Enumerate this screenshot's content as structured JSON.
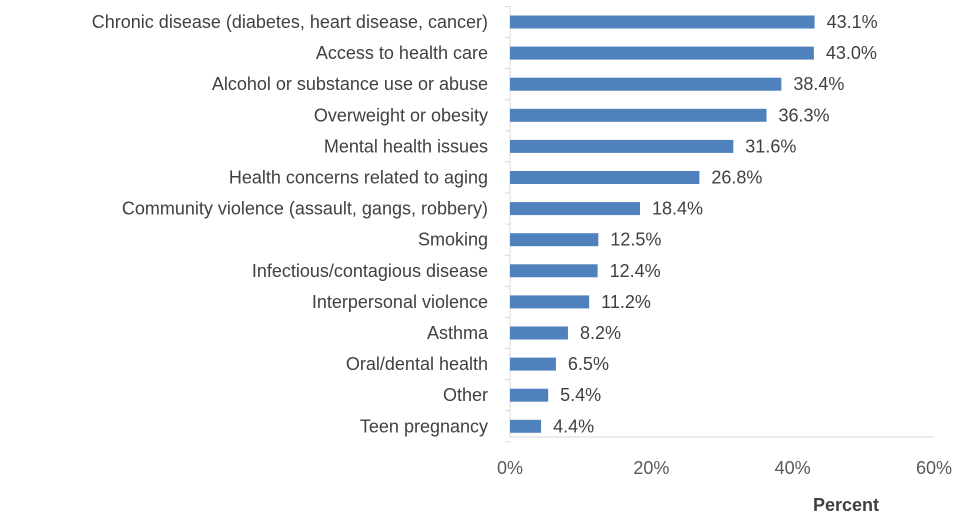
{
  "chart_data": {
    "type": "bar",
    "orientation": "horizontal",
    "title": "",
    "xlabel": "Percent",
    "ylabel": "",
    "xlim": [
      0,
      60
    ],
    "x_ticks": [
      0,
      20,
      40,
      60
    ],
    "x_tick_labels": [
      "0%",
      "20%",
      "40%",
      "60%"
    ],
    "grid": false,
    "legend": "none",
    "bar_color": "#4f81bd",
    "categories": [
      "Chronic disease (diabetes, heart disease, cancer)",
      "Access to health care",
      "Alcohol or substance use or abuse",
      "Overweight or obesity",
      "Mental health issues",
      "Health concerns related to aging",
      "Community violence (assault, gangs, robbery)",
      "Smoking",
      "Infectious/contagious disease",
      "Interpersonal violence",
      "Asthma",
      "Oral/dental health",
      "Other",
      "Teen pregnancy"
    ],
    "values": [
      43.1,
      43.0,
      38.4,
      36.3,
      31.6,
      26.8,
      18.4,
      12.5,
      12.4,
      11.2,
      8.2,
      6.5,
      5.4,
      4.4
    ],
    "data_labels": [
      "43.1%",
      "43.0%",
      "38.4%",
      "36.3%",
      "31.6%",
      "26.8%",
      "18.4%",
      "12.5%",
      "12.4%",
      "11.2%",
      "8.2%",
      "6.5%",
      "5.4%",
      "4.4%"
    ]
  }
}
